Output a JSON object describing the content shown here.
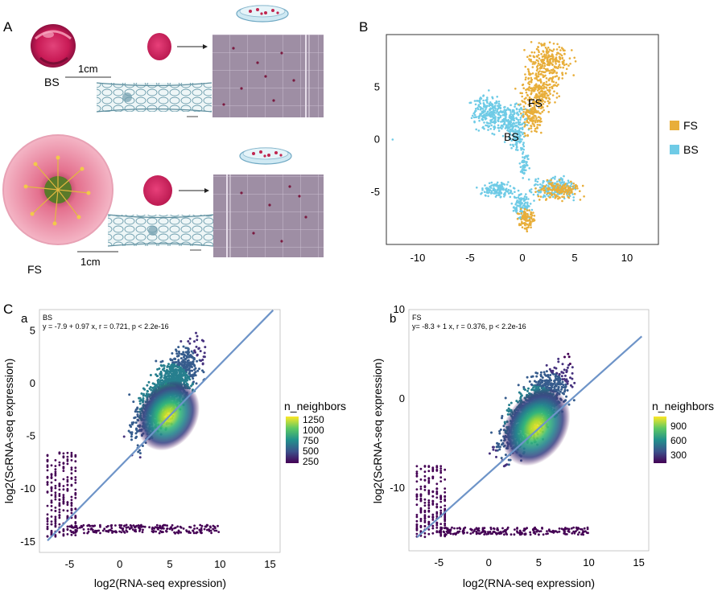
{
  "panelA": {
    "label": "A",
    "bs_label": "BS",
    "fs_label": "FS",
    "scale_top": "1cm",
    "scale_bottom": "1cm"
  },
  "panelB": {
    "label": "B",
    "cluster_fs": "FS",
    "cluster_bs": "BS",
    "legend": [
      {
        "name": "FS",
        "color": "#E8AE3A"
      },
      {
        "name": "BS",
        "color": "#6FCBE6"
      }
    ],
    "x_ticks": [
      "-10",
      "-5",
      "0",
      "5",
      "10"
    ],
    "y_ticks": [
      "5",
      "0",
      "-5"
    ]
  },
  "panelC": {
    "label": "C",
    "a": {
      "sublabel": "a",
      "tag": "BS",
      "equation": "y = -7.9 + 0.97 x, r = 0.721, p < 2.2e-16",
      "xlabel": "log2(RNA-seq expression)",
      "ylabel": "log2(ScRNA-seq expression)",
      "x_ticks": [
        "-5",
        "0",
        "5",
        "10",
        "15"
      ],
      "y_ticks": [
        "5",
        "0",
        "-5",
        "-10",
        "-15"
      ],
      "legend_title": "n_neighbors",
      "legend_ticks": [
        "1250",
        "1000",
        "750",
        "500",
        "250"
      ]
    },
    "b": {
      "sublabel": "b",
      "tag": "FS",
      "equation": "y= -8.3 + 1 x, r = 0.376, p < 2.2e-16",
      "xlabel": "log2(RNA-seq expression)",
      "ylabel": "log2(ScRNA-seq expression)",
      "x_ticks": [
        "-5",
        "0",
        "5",
        "10",
        "15"
      ],
      "y_ticks": [
        "10",
        "0",
        "-10"
      ],
      "legend_title": "n_neighbors",
      "legend_ticks": [
        "900",
        "600",
        "300"
      ]
    }
  },
  "chart_data": [
    {
      "type": "scatter",
      "title": "",
      "xlabel": "",
      "ylabel": "",
      "xlim": [
        -13,
        13
      ],
      "ylim": [
        -10,
        10
      ],
      "series": [
        {
          "name": "FS"
        },
        {
          "name": "BS"
        }
      ],
      "legend": "right"
    },
    {
      "type": "scatter",
      "title": "BS",
      "xlabel": "log2(RNA-seq expression)",
      "ylabel": "log2(ScRNA-seq expression)",
      "xlim": [
        -8,
        16
      ],
      "ylim": [
        -16,
        7
      ],
      "fit": {
        "intercept": -7.9,
        "slope": 0.97,
        "r": 0.721
      },
      "color_scale": {
        "name": "n_neighbors",
        "ticks": [
          250,
          500,
          750,
          1000,
          1250
        ]
      }
    },
    {
      "type": "scatter",
      "title": "FS",
      "xlabel": "log2(RNA-seq expression)",
      "ylabel": "log2(ScRNA-seq expression)",
      "xlim": [
        -8,
        16
      ],
      "ylim": [
        -17,
        10
      ],
      "fit": {
        "intercept": -8.3,
        "slope": 1,
        "r": 0.376
      },
      "color_scale": {
        "name": "n_neighbors",
        "ticks": [
          300,
          600,
          900
        ]
      }
    }
  ]
}
